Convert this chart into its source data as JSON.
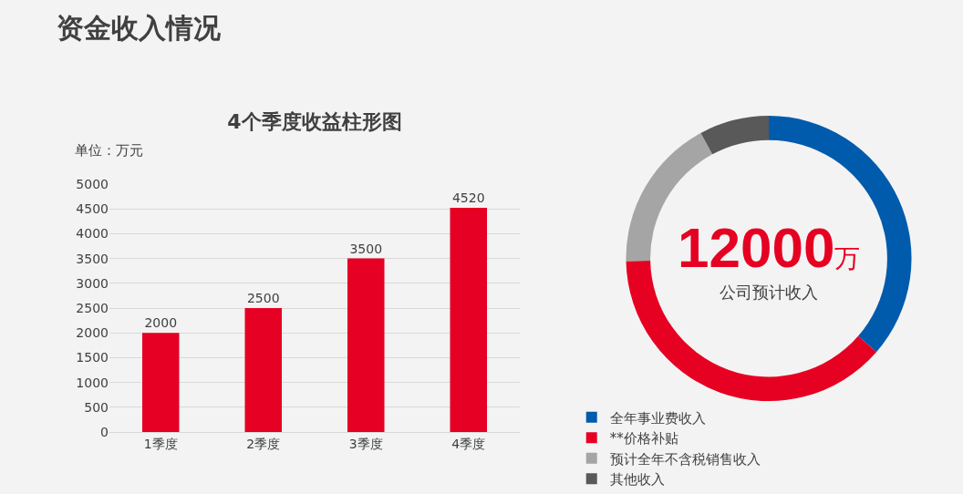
{
  "chart_data": [
    {
      "type": "bar",
      "title": "4个季度收益柱形图",
      "annotations": [
        "资金收入情况",
        "单位：万元"
      ],
      "categories": [
        "1季度",
        "2季度",
        "3季度",
        "4季度"
      ],
      "values": [
        2000,
        2500,
        3500,
        4520
      ],
      "color": "#e60023",
      "ylim": [
        0,
        5000
      ],
      "yticks": [
        0,
        500,
        1000,
        1500,
        2000,
        2500,
        3000,
        3500,
        4000,
        4500,
        5000
      ],
      "grid": "y",
      "data_labels": true
    },
    {
      "type": "donut",
      "annotations": [
        "12000万",
        "公司预计收入"
      ],
      "categories": [
        "全年事业费收入",
        "**价格补贴",
        "预计全年不含税销售收入",
        "其他收入"
      ],
      "values": [
        36.4,
        38.3,
        17.4,
        7.9
      ],
      "colors": [
        "#005bac",
        "#e60022",
        "#a5a5a5",
        "#595959"
      ],
      "legend": "bottom"
    }
  ]
}
